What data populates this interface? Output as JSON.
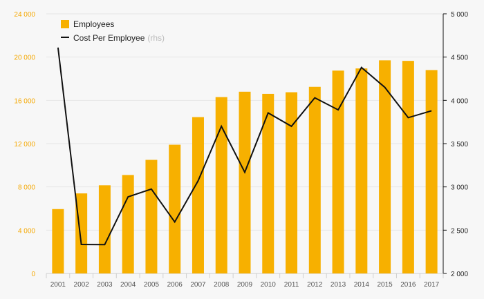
{
  "chart_data": {
    "type": "bar+line",
    "categories": [
      "2001",
      "2002",
      "2003",
      "2004",
      "2005",
      "2006",
      "2007",
      "2008",
      "2009",
      "2010",
      "2011",
      "2012",
      "2013",
      "2014",
      "2015",
      "2016",
      "2017"
    ],
    "series": [
      {
        "name": "Employees",
        "type": "bar",
        "axis": "left",
        "color": "#f7b000",
        "values": [
          5950,
          7400,
          8150,
          9100,
          10500,
          11900,
          14450,
          16300,
          16800,
          16600,
          16750,
          17250,
          18750,
          18950,
          19700,
          19650,
          18800
        ]
      },
      {
        "name": "Cost Per Employee",
        "suffix": "(rhs)",
        "type": "line",
        "axis": "right",
        "color": "#111111",
        "values": [
          4610,
          2335,
          2333,
          2885,
          2975,
          2595,
          3070,
          3700,
          3170,
          3855,
          3700,
          4030,
          3890,
          4380,
          4150,
          3800,
          3880
        ]
      }
    ],
    "left_axis": {
      "min": 0,
      "max": 24000,
      "ticks": [
        0,
        4000,
        8000,
        12000,
        16000,
        20000,
        24000
      ],
      "tick_labels": [
        "0",
        "4 000",
        "8 000",
        "12 000",
        "16 000",
        "20 000",
        "24 000"
      ],
      "color": "#f5a800"
    },
    "right_axis": {
      "min": 2000,
      "max": 5000,
      "ticks": [
        2000,
        2500,
        3000,
        3500,
        4000,
        4500,
        5000
      ],
      "tick_labels": [
        "2 000",
        "2 500",
        "3 000",
        "3 500",
        "4 000",
        "4 500",
        "5 000"
      ],
      "color": "#222222"
    },
    "legend": {
      "placement": "top-left",
      "items": [
        {
          "label": "Employees",
          "marker": "square"
        },
        {
          "label": "Cost Per Employee",
          "suffix": "(rhs)",
          "marker": "line"
        }
      ]
    },
    "grid": true
  }
}
